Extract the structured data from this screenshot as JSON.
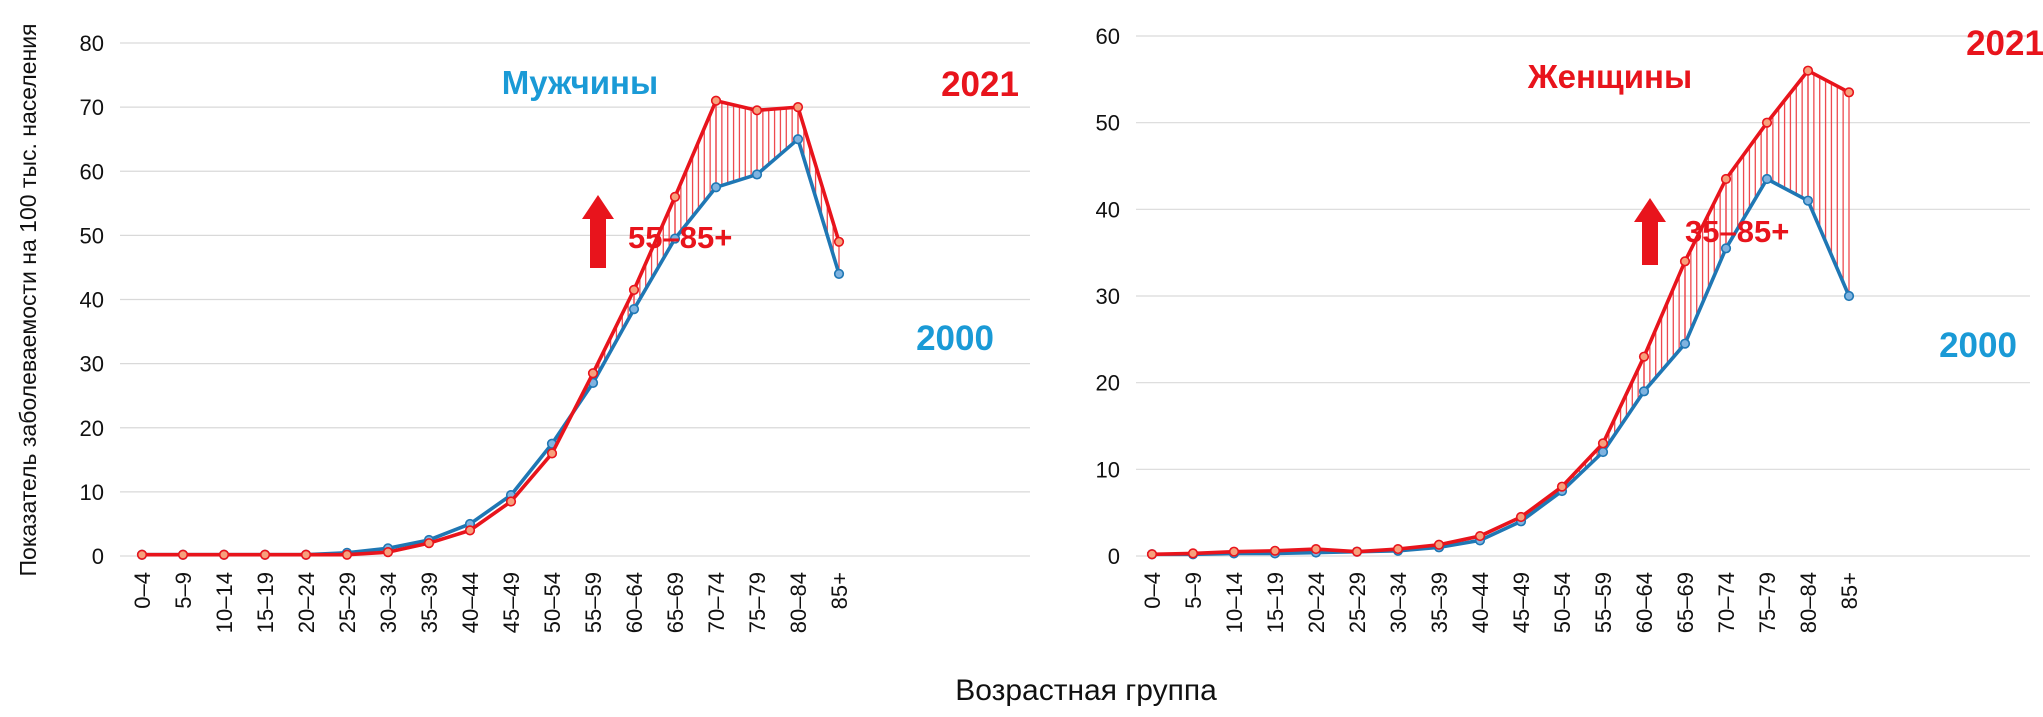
{
  "chart_data": [
    {
      "type": "line",
      "title": "Мужчины",
      "ylabel": "Показатель заболеваемости на 100 тыс. населения",
      "xlabel": "Возрастная группа",
      "ylim": [
        0,
        80
      ],
      "yticks": [
        0,
        10,
        20,
        30,
        40,
        50,
        60,
        70,
        80
      ],
      "categories": [
        "0–4",
        "5–9",
        "10–14",
        "15–19",
        "20–24",
        "25–29",
        "30–34",
        "35–39",
        "40–44",
        "45–49",
        "50–54",
        "55–59",
        "60–64",
        "65–69",
        "70–74",
        "75–79",
        "80–84",
        "85+"
      ],
      "series": [
        {
          "name": "2000",
          "color": "#1f77b4",
          "values": [
            0.2,
            0.2,
            0.2,
            0.2,
            0.2,
            0.5,
            1.2,
            2.5,
            5.0,
            9.5,
            17.5,
            27.0,
            38.5,
            49.5,
            57.5,
            59.5,
            65.0,
            44.0
          ]
        },
        {
          "name": "2021",
          "color": "#e8141c",
          "values": [
            0.2,
            0.2,
            0.2,
            0.2,
            0.2,
            0.2,
            0.6,
            2.0,
            4.0,
            8.5,
            16.0,
            28.5,
            41.5,
            56.0,
            71.0,
            69.5,
            70.0,
            49.0
          ]
        }
      ],
      "annotation": {
        "text": "55–85+",
        "icon": "arrow-up-icon"
      }
    },
    {
      "type": "line",
      "title": "Женщины",
      "ylim": [
        0,
        60
      ],
      "yticks": [
        0,
        10,
        20,
        30,
        40,
        50,
        60
      ],
      "categories": [
        "0–4",
        "5–9",
        "10–14",
        "15–19",
        "20–24",
        "25–29",
        "30–34",
        "35–39",
        "40–44",
        "45–49",
        "50–54",
        "55–59",
        "60–64",
        "65–69",
        "70–74",
        "75–79",
        "80–84",
        "85+"
      ],
      "series": [
        {
          "name": "2000",
          "color": "#1f77b4",
          "values": [
            0.2,
            0.2,
            0.3,
            0.3,
            0.4,
            0.5,
            0.6,
            1.0,
            1.8,
            4.0,
            7.5,
            12.0,
            19.0,
            24.5,
            35.5,
            43.5,
            41.0,
            30.0
          ]
        },
        {
          "name": "2021",
          "color": "#e8141c",
          "values": [
            0.2,
            0.3,
            0.5,
            0.6,
            0.8,
            0.5,
            0.8,
            1.3,
            2.3,
            4.5,
            8.0,
            13.0,
            23.0,
            34.0,
            43.5,
            50.0,
            56.0,
            53.5
          ]
        }
      ],
      "annotation": {
        "text": "35–85+",
        "icon": "arrow-up-icon"
      }
    }
  ]
}
